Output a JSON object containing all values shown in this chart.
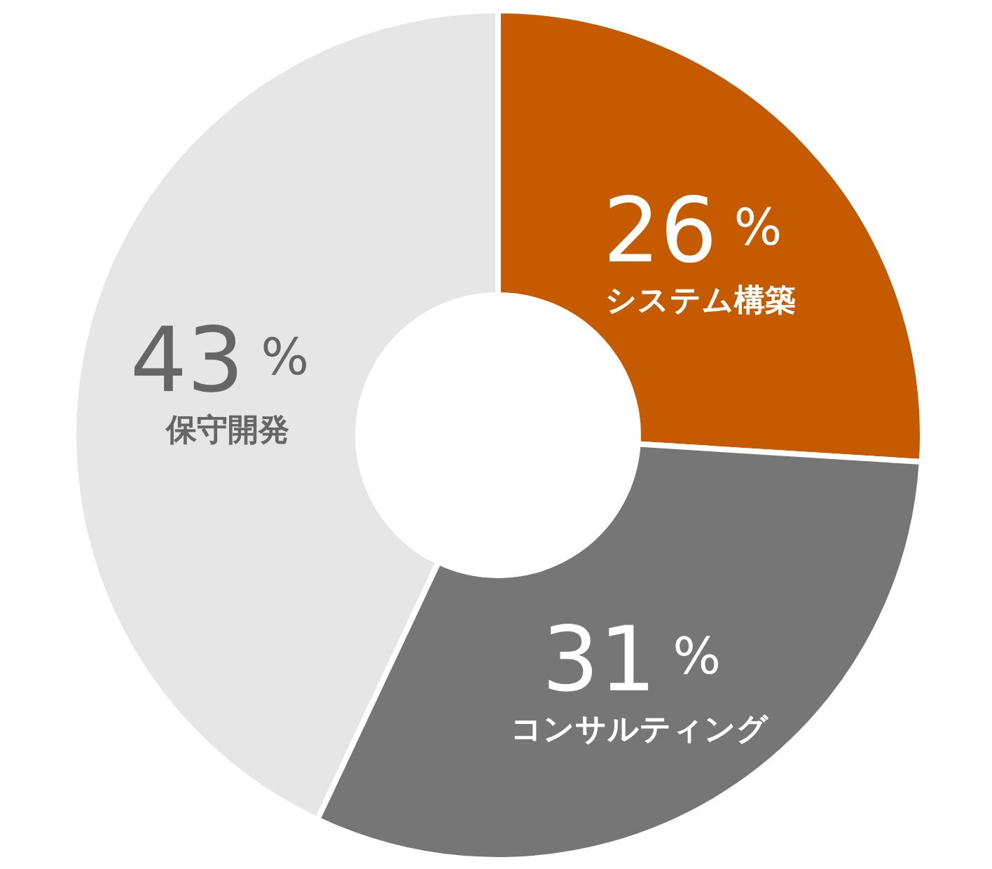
{
  "chart_data": {
    "type": "donut",
    "categories": [
      "システム構築",
      "コンサルティング",
      "保守開発"
    ],
    "values": [
      26,
      31,
      43
    ],
    "colors": [
      "#c55a00",
      "#767676",
      "#e6e6e6"
    ],
    "value_labels": [
      "26 %",
      "31 %",
      "43 %"
    ]
  }
}
